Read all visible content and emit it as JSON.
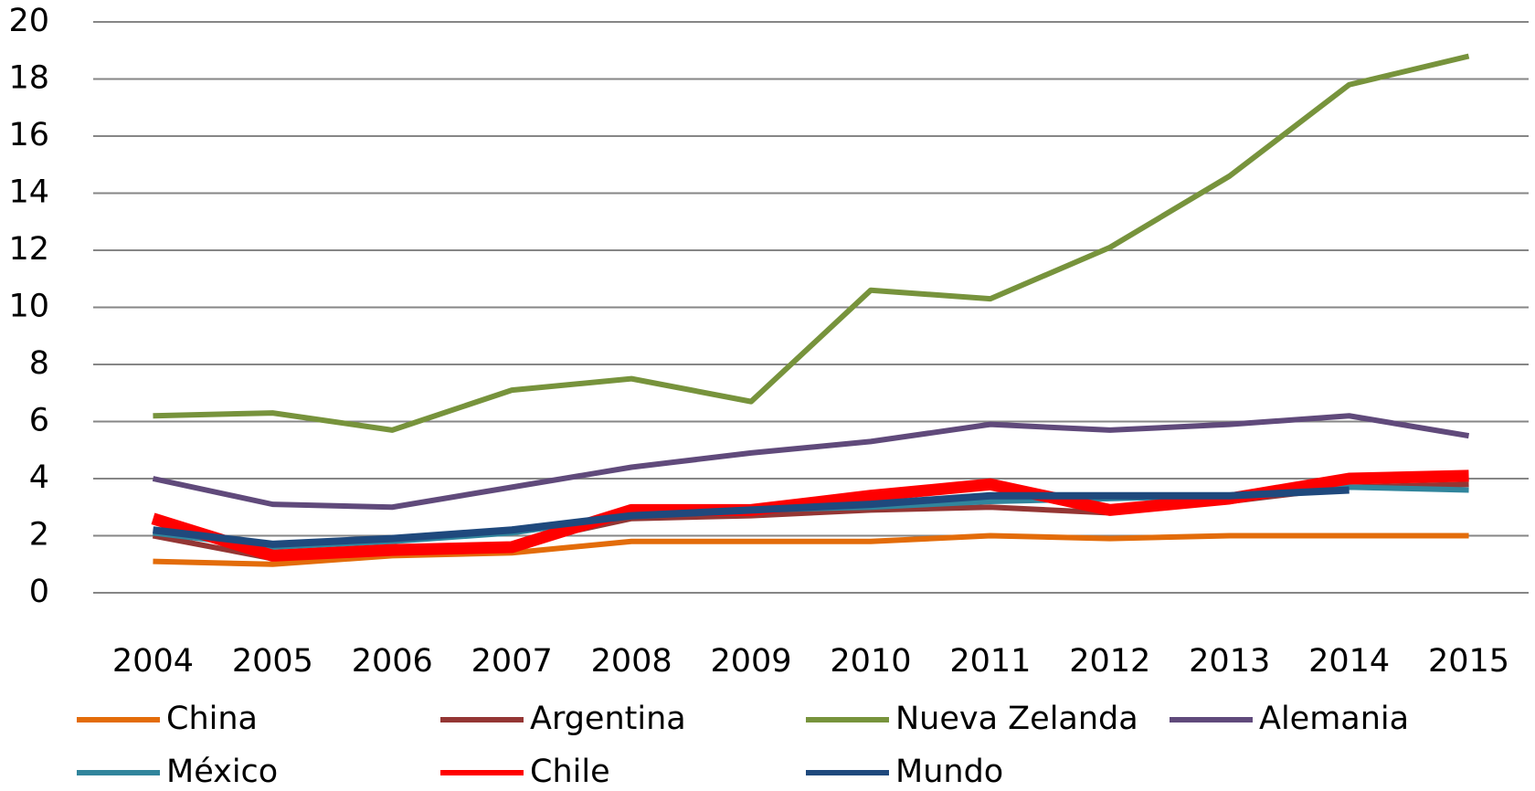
{
  "chart_data": {
    "type": "line",
    "categories": [
      "2004",
      "2005",
      "2006",
      "2007",
      "2008",
      "2009",
      "2010",
      "2011",
      "2012",
      "2013",
      "2014",
      "2015"
    ],
    "ylim": [
      0,
      20
    ],
    "yticks": [
      0,
      2,
      4,
      6,
      8,
      10,
      12,
      14,
      16,
      18,
      20
    ],
    "grid": true,
    "legend": "bottom",
    "series": [
      {
        "name": "China",
        "color": "#e36c0a",
        "values": [
          1.1,
          1.0,
          1.3,
          1.4,
          1.8,
          1.8,
          1.8,
          2.0,
          1.9,
          2.0,
          2.0,
          2.0
        ]
      },
      {
        "name": "Argentina",
        "color": "#943634",
        "values": [
          2.0,
          1.2,
          1.5,
          1.7,
          2.6,
          2.7,
          2.9,
          3.0,
          2.8,
          3.2,
          3.7,
          3.8
        ]
      },
      {
        "name": "Nueva Zelanda",
        "color": "#77933c",
        "values": [
          6.2,
          6.3,
          5.7,
          7.1,
          7.5,
          6.7,
          10.6,
          10.3,
          12.1,
          14.6,
          17.8,
          18.8
        ]
      },
      {
        "name": "Alemania",
        "color": "#604a7b",
        "values": [
          4.0,
          3.1,
          3.0,
          3.7,
          4.4,
          4.9,
          5.3,
          5.9,
          5.7,
          5.9,
          6.2,
          5.5
        ]
      },
      {
        "name": "México",
        "color": "#31859c",
        "values": [
          2.1,
          1.6,
          1.8,
          2.1,
          2.7,
          2.9,
          3.0,
          3.2,
          3.3,
          3.4,
          3.7,
          3.6
        ]
      },
      {
        "name": "Chile",
        "color": "#ff0000",
        "values": [
          2.6,
          1.3,
          1.5,
          1.6,
          2.9,
          2.9,
          3.4,
          3.8,
          2.9,
          3.3,
          4.0,
          4.1
        ]
      },
      {
        "name": "Mundo",
        "color": "#1f497d",
        "values": [
          2.2,
          1.7,
          1.9,
          2.2,
          2.7,
          2.9,
          3.1,
          3.4,
          3.4,
          3.4,
          3.6,
          null
        ]
      }
    ]
  }
}
